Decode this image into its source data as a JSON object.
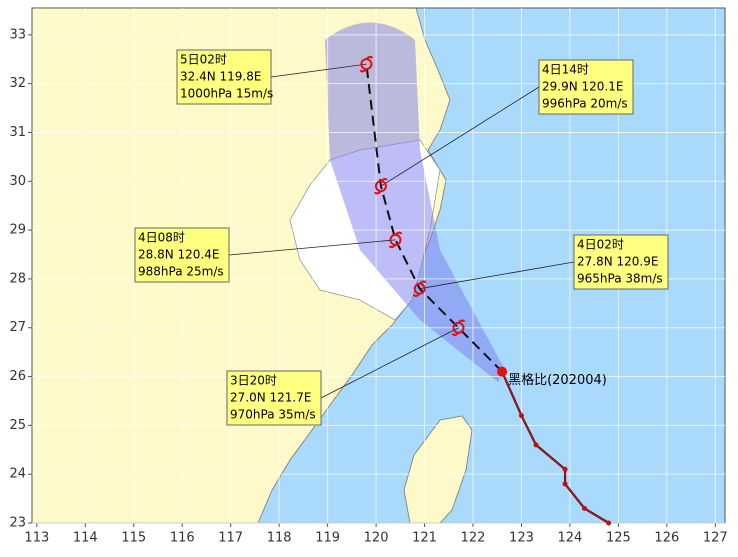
{
  "map": {
    "xlim": [
      112.9,
      127.2
    ],
    "ylim": [
      23,
      33.55
    ],
    "xticks": [
      113,
      114,
      115,
      116,
      117,
      118,
      119,
      120,
      121,
      122,
      123,
      124,
      125,
      126,
      127
    ],
    "yticks": [
      23,
      24,
      25,
      26,
      27,
      28,
      29,
      30,
      31,
      32,
      33
    ],
    "storm_name": "黑格比(202004)",
    "current": {
      "lat": 26.1,
      "lon": 122.6
    },
    "forecast": [
      {
        "time": "3日20时",
        "position": "27.0N 121.7E",
        "intensity": "970hPa 35m/s",
        "lat": 27.0,
        "lon": 121.7
      },
      {
        "time": "4日02时",
        "position": "27.8N 120.9E",
        "intensity": "965hPa 38m/s",
        "lat": 27.8,
        "lon": 120.9
      },
      {
        "time": "4日08时",
        "position": "28.8N 120.4E",
        "intensity": "988hPa 25m/s",
        "lat": 28.8,
        "lon": 120.4
      },
      {
        "time": "4日14时",
        "position": "29.9N 120.1E",
        "intensity": "996hPa 20m/s",
        "lat": 29.9,
        "lon": 120.1
      },
      {
        "time": "5日02时",
        "position": "32.4N 119.8E",
        "intensity": "1000hPa 15m/s",
        "lat": 32.4,
        "lon": 119.8
      }
    ],
    "past_track": {
      "lat": [
        26.1,
        25.2,
        24.6,
        24.1,
        23.8,
        23.3,
        23.0
      ],
      "lon": [
        122.6,
        123.0,
        123.3,
        123.9,
        123.9,
        124.3,
        124.8
      ]
    }
  }
}
